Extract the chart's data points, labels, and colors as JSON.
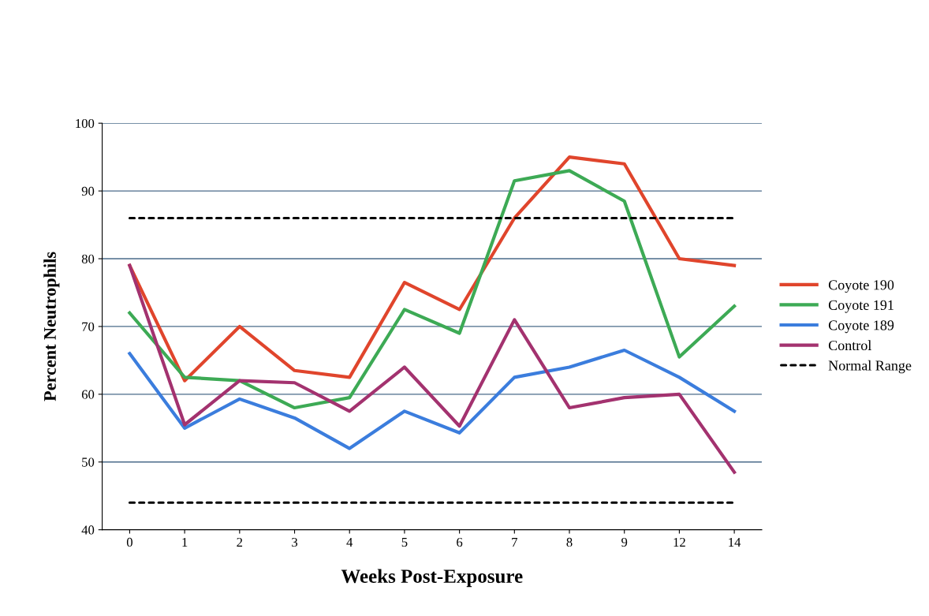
{
  "chart_data": {
    "type": "line",
    "xlabel": "Weeks Post-Exposure",
    "ylabel": "Percent Neutrophils",
    "categories": [
      "0",
      "1",
      "2",
      "3",
      "4",
      "5",
      "6",
      "7",
      "8",
      "9",
      "12",
      "14"
    ],
    "series": [
      {
        "name": "Coyote 190",
        "color": "#e0452c",
        "values": [
          79,
          62,
          70,
          63.5,
          62.5,
          76.5,
          72.5,
          86,
          95,
          94,
          80,
          79
        ]
      },
      {
        "name": "Coyote 191",
        "color": "#3daa55",
        "values": [
          72,
          62.5,
          62,
          58,
          59.5,
          72.5,
          69,
          91.5,
          93,
          88.5,
          65.5,
          73
        ]
      },
      {
        "name": "Coyote 189",
        "color": "#3b7ddd",
        "values": [
          66,
          55,
          59.3,
          56.5,
          52,
          57.5,
          54.3,
          62.5,
          64,
          66.5,
          62.5,
          57.5
        ]
      },
      {
        "name": "Control",
        "color": "#a3326f",
        "values": [
          79,
          55.5,
          62,
          61.7,
          57.5,
          64,
          55.3,
          71,
          58,
          59.5,
          60,
          48.5
        ]
      },
      {
        "name": "Normal Range",
        "color": "#000000",
        "line_style": "dashed",
        "values": [
          86,
          86,
          86,
          86,
          86,
          86,
          86,
          86,
          86,
          86,
          86,
          86
        ]
      },
      {
        "color": "#000000",
        "line_style": "dashed",
        "values": [
          44,
          44,
          44,
          44,
          44,
          44,
          44,
          44,
          44,
          44,
          44,
          44
        ]
      }
    ],
    "ylim": [
      40,
      100
    ],
    "yticks": [
      40,
      50,
      60,
      70,
      80,
      90,
      100
    ],
    "grid": "y",
    "legend": "right",
    "marker": "none",
    "line_style": "solid"
  }
}
